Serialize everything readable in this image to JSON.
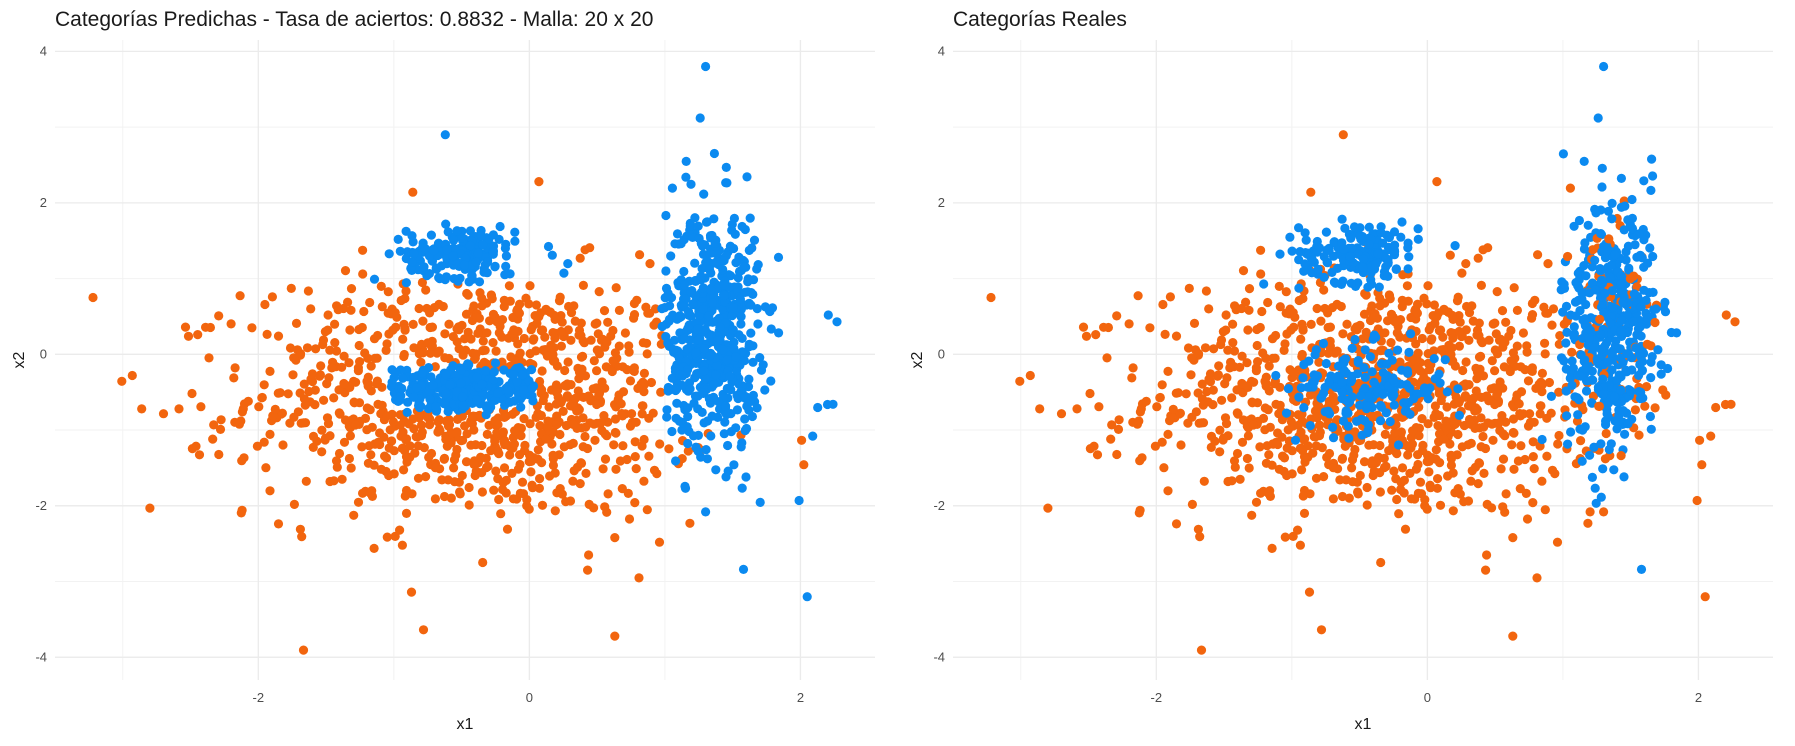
{
  "colors": {
    "class_orange": "#F2650E",
    "class_blue": "#0B8AF0",
    "grid": "#EBEBEB"
  },
  "chart_data": [
    {
      "type": "scatter",
      "title": "Categorías Predichas - Tasa de aciertos: 0.8832 - Malla: 20 x 20",
      "xlabel": "x1",
      "ylabel": "x2",
      "xlim": [
        -3.5,
        2.55
      ],
      "ylim": [
        -4.3,
        4.15
      ],
      "x_ticks": [
        -2,
        0,
        2
      ],
      "y_ticks": [
        -4,
        -2,
        0,
        2,
        4
      ],
      "grid": true,
      "legend": "none",
      "series_colors": [
        "#F2650E",
        "#0B8AF0"
      ],
      "point_count_note": "dense scatter; outliers listed, clusters summarized",
      "outliers": [
        {
          "x": -3.22,
          "y": 0.75,
          "c": 0
        },
        {
          "x": -2.93,
          "y": -0.28,
          "c": 0
        },
        {
          "x": -2.8,
          "y": -2.03,
          "c": 0
        },
        {
          "x": -2.86,
          "y": -0.72,
          "c": 0
        },
        {
          "x": -0.87,
          "y": -3.14,
          "c": 0
        },
        {
          "x": 0.63,
          "y": -3.72,
          "c": 0
        },
        {
          "x": -0.62,
          "y": 2.9,
          "c": 1
        },
        {
          "x": 0.07,
          "y": 2.28,
          "c": 0
        },
        {
          "x": -0.86,
          "y": 2.14,
          "c": 0
        },
        {
          "x": 1.3,
          "y": 3.8,
          "c": 1
        },
        {
          "x": 1.26,
          "y": 3.12,
          "c": 1
        },
        {
          "x": 2.27,
          "y": 0.43,
          "c": 1
        },
        {
          "x": 2.24,
          "y": -0.66,
          "c": 1
        },
        {
          "x": 2.09,
          "y": -1.08,
          "c": 1
        },
        {
          "x": 1.99,
          "y": -1.93,
          "c": 1
        },
        {
          "x": 1.58,
          "y": -2.84,
          "c": 1
        },
        {
          "x": 2.05,
          "y": -3.2,
          "c": 1
        },
        {
          "x": 0.96,
          "y": -2.48,
          "c": 0
        },
        {
          "x": 0.63,
          "y": -2.42,
          "c": 0
        },
        {
          "x": 1.3,
          "y": -2.08,
          "c": 1
        }
      ],
      "clusters": [
        {
          "cx": -0.35,
          "cy": -0.55,
          "sx": 0.85,
          "sy": 0.8,
          "n": 1100,
          "c": 0
        },
        {
          "cx": -0.5,
          "cy": 1.35,
          "sx": 0.2,
          "sy": 0.17,
          "n": 170,
          "c": 1
        },
        {
          "cx": -0.5,
          "cy": -0.45,
          "sx": 0.23,
          "sy": 0.13,
          "n": 170,
          "c": 1
        },
        {
          "cx": 1.35,
          "cy": 0.35,
          "sx": 0.17,
          "sy": 0.8,
          "n": 520,
          "c": 1
        }
      ],
      "mode": "predicted"
    },
    {
      "type": "scatter",
      "title": "Categorías Reales",
      "xlabel": "x1",
      "ylabel": "x2",
      "xlim": [
        -3.5,
        2.55
      ],
      "ylim": [
        -4.3,
        4.15
      ],
      "x_ticks": [
        -2,
        0,
        2
      ],
      "y_ticks": [
        -4,
        -2,
        0,
        2,
        4
      ],
      "grid": true,
      "legend": "none",
      "series_colors": [
        "#F2650E",
        "#0B8AF0"
      ],
      "outliers": [
        {
          "x": -3.22,
          "y": 0.75,
          "c": 0
        },
        {
          "x": -2.93,
          "y": -0.28,
          "c": 0
        },
        {
          "x": -2.8,
          "y": -2.03,
          "c": 0
        },
        {
          "x": -2.86,
          "y": -0.72,
          "c": 0
        },
        {
          "x": -0.87,
          "y": -3.14,
          "c": 0
        },
        {
          "x": 0.63,
          "y": -3.72,
          "c": 0
        },
        {
          "x": -0.62,
          "y": 2.9,
          "c": 0
        },
        {
          "x": 0.07,
          "y": 2.28,
          "c": 0
        },
        {
          "x": -0.86,
          "y": 2.14,
          "c": 0
        },
        {
          "x": 1.3,
          "y": 3.8,
          "c": 1
        },
        {
          "x": 1.26,
          "y": 3.12,
          "c": 1
        },
        {
          "x": 2.27,
          "y": 0.43,
          "c": 0
        },
        {
          "x": 2.24,
          "y": -0.66,
          "c": 0
        },
        {
          "x": 2.09,
          "y": -1.08,
          "c": 0
        },
        {
          "x": 1.99,
          "y": -1.93,
          "c": 0
        },
        {
          "x": 1.58,
          "y": -2.84,
          "c": 1
        },
        {
          "x": 2.05,
          "y": -3.2,
          "c": 0
        },
        {
          "x": 0.96,
          "y": -2.48,
          "c": 0
        },
        {
          "x": 0.63,
          "y": -2.42,
          "c": 0
        },
        {
          "x": 1.3,
          "y": -2.08,
          "c": 0
        }
      ],
      "clusters": [
        {
          "cx": -0.35,
          "cy": -0.55,
          "sx": 0.85,
          "sy": 0.8,
          "n": 1100,
          "c": 0
        },
        {
          "cx": -0.5,
          "cy": 1.35,
          "sx": 0.22,
          "sy": 0.2,
          "n": 170,
          "c": 1
        },
        {
          "cx": -0.45,
          "cy": -0.45,
          "sx": 0.3,
          "sy": 0.28,
          "n": 170,
          "c": 1
        },
        {
          "cx": 1.35,
          "cy": 0.35,
          "sx": 0.17,
          "sy": 0.8,
          "n": 520,
          "c": 1
        }
      ],
      "mode": "real"
    }
  ]
}
